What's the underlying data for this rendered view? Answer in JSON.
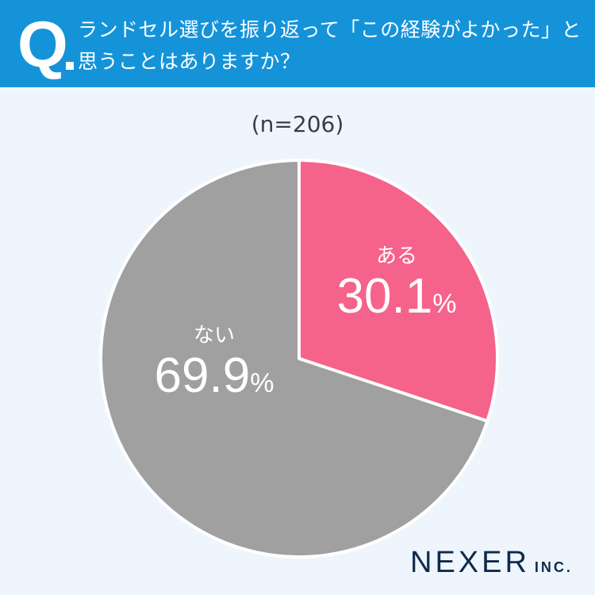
{
  "header": {
    "q_mark": "Q",
    "question": "ランドセル選びを振り返って「この経験がよかった」と思うことはありますか？"
  },
  "sample": "(n=206)",
  "colors": {
    "header_bg": "#1593d9",
    "background": "#eef5fc",
    "yes": "#f5628a",
    "no": "#a0a0a0"
  },
  "chart_data": {
    "type": "pie",
    "title": "ランドセル選びを振り返って「この経験がよかった」と思うことはありますか？",
    "subtitle": "(n=206)",
    "categories": [
      "ある",
      "ない"
    ],
    "values": [
      30.1,
      69.9
    ],
    "unit": "%",
    "start_angle": "12 o'clock, clockwise",
    "colors": [
      "#f5628a",
      "#a0a0a0"
    ]
  },
  "labels": {
    "yes": {
      "category": "ある",
      "value": "30.1",
      "unit": "%"
    },
    "no": {
      "category": "ない",
      "value": "69.9",
      "unit": "%"
    }
  },
  "logo": {
    "name": "NEXER",
    "suffix": "INC."
  }
}
